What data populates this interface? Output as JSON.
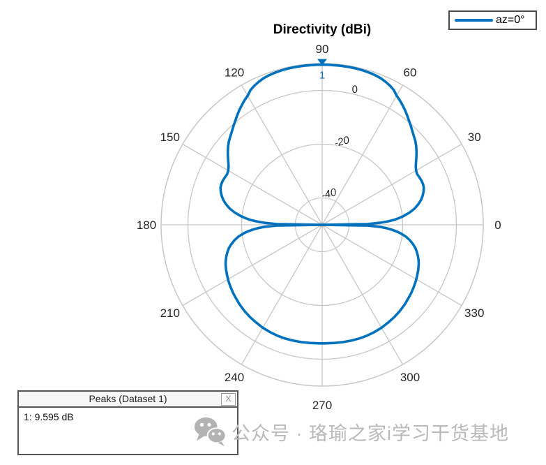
{
  "title": "Directivity (dBi)",
  "legend": {
    "label": "az=0°",
    "line_color": "#0072BD"
  },
  "peaks_panel": {
    "title": "Peaks (Dataset 1)",
    "close_label": "X",
    "rows": [
      "1: 9.595 dB"
    ]
  },
  "peak_marker": {
    "label": "1",
    "angle_deg": 90,
    "value_db": 9.595
  },
  "watermark": {
    "icon": "wechat-icon",
    "text": "公众号 · 珞瑜之家i学习干货基地"
  },
  "colors": {
    "series": "#0072BD",
    "grid": "#c7c7c7",
    "tick_label": "#262626",
    "watermark": "#b9b9b9"
  },
  "chart_data": {
    "type": "line",
    "subtype": "polar",
    "title": "Directivity (dBi)",
    "legend_entries": [
      "az=0°"
    ],
    "legend_position": "top-right",
    "grid": true,
    "angle_ticks_deg": [
      0,
      30,
      60,
      90,
      120,
      150,
      180,
      210,
      240,
      270,
      300,
      330
    ],
    "magnitude_ticks_db": [
      -40,
      -20,
      0
    ],
    "magnitude_tick_labels": [
      "-40",
      "-20",
      "0"
    ],
    "magnitude_range_db": [
      -50,
      10
    ],
    "peaks": [
      {
        "id": "1",
        "angle_deg": 90,
        "value_db": 9.595
      }
    ],
    "series": [
      {
        "name": "az=0°",
        "color": "#0072BD",
        "points_deg_db": [
          [
            0,
            -50
          ],
          [
            1,
            -33
          ],
          [
            2,
            -28.5
          ],
          [
            3,
            -25.5
          ],
          [
            4,
            -23
          ],
          [
            5,
            -21.3
          ],
          [
            6,
            -19.7
          ],
          [
            8,
            -17.1
          ],
          [
            10,
            -15
          ],
          [
            12,
            -13.4
          ],
          [
            14,
            -12.1
          ],
          [
            16,
            -11.1
          ],
          [
            18,
            -10.3
          ],
          [
            20,
            -9.7
          ],
          [
            22,
            -9.5
          ],
          [
            24,
            -9.5
          ],
          [
            26,
            -9.7
          ],
          [
            28,
            -9.9
          ],
          [
            30,
            -9.6
          ],
          [
            32,
            -8.9
          ],
          [
            34,
            -7.8
          ],
          [
            36,
            -6.6
          ],
          [
            38,
            -5.4
          ],
          [
            40,
            -4.3
          ],
          [
            42,
            -3.3
          ],
          [
            44,
            -2.5
          ],
          [
            46,
            -1.6
          ],
          [
            48,
            -0.6
          ],
          [
            50,
            0.4
          ],
          [
            52,
            1.5
          ],
          [
            54,
            2.6
          ],
          [
            56,
            3.6
          ],
          [
            58,
            4.6
          ],
          [
            60,
            5.5
          ],
          [
            62,
            6.8
          ],
          [
            64,
            7.6
          ],
          [
            66,
            8.2
          ],
          [
            68,
            8.7
          ],
          [
            70,
            9.0
          ],
          [
            72,
            9.2
          ],
          [
            74,
            9.35
          ],
          [
            76,
            9.45
          ],
          [
            78,
            9.5
          ],
          [
            80,
            9.55
          ],
          [
            84,
            9.58
          ],
          [
            88,
            9.59
          ],
          [
            90,
            9.595
          ],
          [
            92,
            9.59
          ],
          [
            96,
            9.58
          ],
          [
            100,
            9.55
          ],
          [
            102,
            9.5
          ],
          [
            104,
            9.45
          ],
          [
            106,
            9.35
          ],
          [
            108,
            9.2
          ],
          [
            110,
            9.0
          ],
          [
            112,
            8.7
          ],
          [
            114,
            8.2
          ],
          [
            116,
            7.6
          ],
          [
            118,
            6.8
          ],
          [
            120,
            5.5
          ],
          [
            122,
            4.6
          ],
          [
            124,
            3.6
          ],
          [
            126,
            2.6
          ],
          [
            128,
            1.5
          ],
          [
            130,
            0.4
          ],
          [
            132,
            -0.6
          ],
          [
            134,
            -1.6
          ],
          [
            136,
            -2.5
          ],
          [
            138,
            -3.3
          ],
          [
            140,
            -4.3
          ],
          [
            142,
            -5.4
          ],
          [
            144,
            -6.6
          ],
          [
            146,
            -7.8
          ],
          [
            148,
            -8.9
          ],
          [
            150,
            -9.6
          ],
          [
            152,
            -9.9
          ],
          [
            154,
            -9.7
          ],
          [
            156,
            -9.5
          ],
          [
            158,
            -9.5
          ],
          [
            160,
            -9.7
          ],
          [
            162,
            -10.3
          ],
          [
            164,
            -11.1
          ],
          [
            166,
            -12.1
          ],
          [
            168,
            -13.4
          ],
          [
            170,
            -15
          ],
          [
            172,
            -17.1
          ],
          [
            174,
            -19.7
          ],
          [
            175,
            -21.3
          ],
          [
            176,
            -23
          ],
          [
            177,
            -25.5
          ],
          [
            178,
            -28.5
          ],
          [
            179,
            -33
          ],
          [
            180,
            -50
          ],
          [
            181,
            -33
          ],
          [
            182,
            -28.5
          ],
          [
            183,
            -26
          ],
          [
            184,
            -24
          ],
          [
            185,
            -22.3
          ],
          [
            186,
            -20.8
          ],
          [
            188,
            -18.5
          ],
          [
            190,
            -16.8
          ],
          [
            192,
            -15.4
          ],
          [
            194,
            -14.2
          ],
          [
            196,
            -13.3
          ],
          [
            198,
            -12.5
          ],
          [
            200,
            -11.8
          ],
          [
            202,
            -11.2
          ],
          [
            205,
            -10.5
          ],
          [
            208,
            -9.9
          ],
          [
            211,
            -9.3
          ],
          [
            214,
            -8.8
          ],
          [
            217,
            -8.3
          ],
          [
            220,
            -7.9
          ],
          [
            224,
            -7.3
          ],
          [
            228,
            -6.8
          ],
          [
            232,
            -6.4
          ],
          [
            236,
            -6.1
          ],
          [
            240,
            -5.8
          ],
          [
            244,
            -5.6
          ],
          [
            248,
            -5.5
          ],
          [
            252,
            -5.5
          ],
          [
            256,
            -5.6
          ],
          [
            260,
            -5.7
          ],
          [
            264,
            -5.8
          ],
          [
            268,
            -5.9
          ],
          [
            270,
            -5.9
          ],
          [
            272,
            -5.9
          ],
          [
            276,
            -5.8
          ],
          [
            280,
            -5.7
          ],
          [
            284,
            -5.6
          ],
          [
            288,
            -5.5
          ],
          [
            292,
            -5.5
          ],
          [
            296,
            -5.6
          ],
          [
            300,
            -5.8
          ],
          [
            304,
            -6.1
          ],
          [
            308,
            -6.4
          ],
          [
            312,
            -6.8
          ],
          [
            316,
            -7.3
          ],
          [
            320,
            -7.9
          ],
          [
            323,
            -8.3
          ],
          [
            326,
            -8.8
          ],
          [
            329,
            -9.3
          ],
          [
            332,
            -9.9
          ],
          [
            335,
            -10.5
          ],
          [
            338,
            -11.2
          ],
          [
            340,
            -11.8
          ],
          [
            342,
            -12.5
          ],
          [
            344,
            -13.3
          ],
          [
            346,
            -14.2
          ],
          [
            348,
            -15.4
          ],
          [
            350,
            -16.8
          ],
          [
            352,
            -18.5
          ],
          [
            354,
            -20.8
          ],
          [
            355,
            -22.3
          ],
          [
            356,
            -24
          ],
          [
            357,
            -26
          ],
          [
            358,
            -28.5
          ],
          [
            359,
            -33
          ],
          [
            360,
            -50
          ]
        ]
      }
    ]
  }
}
